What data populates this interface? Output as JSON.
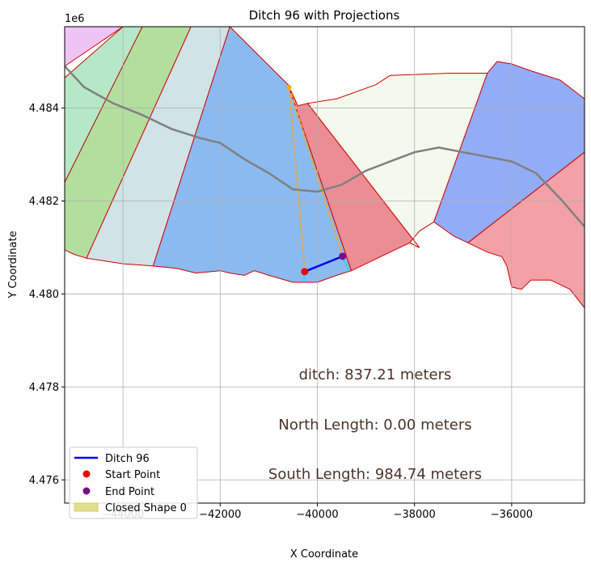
{
  "chart_data": {
    "type": "map-plot",
    "title": "Ditch 96 with Projections",
    "xlabel": "X Coordinate",
    "ylabel": "Y Coordinate",
    "offset_label": "1e6",
    "xlim": [
      -45200,
      -34500
    ],
    "ylim": [
      4475500,
      4485750
    ],
    "grid": true,
    "x_ticks": [
      {
        "value": -44000,
        "label": "−44000"
      },
      {
        "value": -42000,
        "label": "−42000"
      },
      {
        "value": -40000,
        "label": "−40000"
      },
      {
        "value": -38000,
        "label": "−38000"
      },
      {
        "value": -36000,
        "label": "−36000"
      }
    ],
    "y_ticks": [
      {
        "value": 4476000,
        "label": "4.476"
      },
      {
        "value": 4478000,
        "label": "4.478"
      },
      {
        "value": 4480000,
        "label": "4.480"
      },
      {
        "value": 4482000,
        "label": "4.482"
      },
      {
        "value": 4484000,
        "label": "4.484"
      }
    ],
    "polygons": [
      {
        "name": "strip-pink",
        "fill": "#eec4f5",
        "stroke": "#d00000",
        "points": [
          [
            -45200,
            4485750
          ],
          [
            -44000,
            4485750
          ],
          [
            -45200,
            4484900
          ]
        ]
      },
      {
        "name": "strip-mint",
        "fill": "#b5e8c7",
        "stroke": "#d00000",
        "points": [
          [
            -45200,
            4484650
          ],
          [
            -44000,
            4485750
          ],
          [
            -43600,
            4485750
          ],
          [
            -45200,
            4482400
          ]
        ]
      },
      {
        "name": "strip-green",
        "fill": "#b3df9e",
        "stroke": "#d00000",
        "points": [
          [
            -45200,
            4482400
          ],
          [
            -43600,
            4485750
          ],
          [
            -42600,
            4485750
          ],
          [
            -44750,
            4480770
          ],
          [
            -45000,
            4480850
          ],
          [
            -45200,
            4480950
          ]
        ]
      },
      {
        "name": "strip-bluegray",
        "fill": "#d0e3e7",
        "stroke": "#d00000",
        "points": [
          [
            -44750,
            4480770
          ],
          [
            -42600,
            4485750
          ],
          [
            -41800,
            4485750
          ],
          [
            -43380,
            4480600
          ],
          [
            -44000,
            4480650
          ]
        ]
      },
      {
        "name": "strip-blue",
        "fill": "#8bbaf0",
        "stroke": "#d00000",
        "points": [
          [
            -43380,
            4480600
          ],
          [
            -41800,
            4485750
          ],
          [
            -40600,
            4484500
          ],
          [
            -39300,
            4480500
          ],
          [
            -39600,
            4480400
          ],
          [
            -40000,
            4480250
          ],
          [
            -40500,
            4480250
          ],
          [
            -41000,
            4480400
          ],
          [
            -41300,
            4480500
          ],
          [
            -41500,
            4480400
          ],
          [
            -41800,
            4480450
          ],
          [
            -42000,
            4480500
          ],
          [
            -42500,
            4480450
          ],
          [
            -42900,
            4480550
          ]
        ]
      },
      {
        "name": "strip-red-mid",
        "fill": "#ea8d95",
        "stroke": "#d00000",
        "points": [
          [
            -40600,
            4484500
          ],
          [
            -40400,
            4484050
          ],
          [
            -40200,
            4484100
          ],
          [
            -37900,
            4481000
          ],
          [
            -38100,
            4481100
          ],
          [
            -38500,
            4480900
          ],
          [
            -39000,
            4480650
          ],
          [
            -39300,
            4480500
          ]
        ]
      },
      {
        "name": "strip-cream",
        "fill": "#f3f9ec",
        "stroke": "#d00000",
        "points": [
          [
            -40200,
            4484100
          ],
          [
            -39600,
            4484200
          ],
          [
            -38800,
            4484500
          ],
          [
            -38500,
            4484700
          ],
          [
            -37300,
            4484750
          ],
          [
            -36500,
            4484750
          ],
          [
            -37600,
            4481550
          ],
          [
            -37900,
            4481350
          ],
          [
            -38100,
            4481100
          ],
          [
            -37900,
            4481000
          ]
        ]
      },
      {
        "name": "strip-royal",
        "fill": "#93acf7",
        "stroke": "#d00000",
        "points": [
          [
            -37600,
            4481550
          ],
          [
            -36500,
            4484750
          ],
          [
            -36300,
            4485000
          ],
          [
            -36000,
            4484950
          ],
          [
            -35600,
            4484800
          ],
          [
            -35000,
            4484600
          ],
          [
            -34500,
            4484200
          ],
          [
            -34500,
            4483050
          ],
          [
            -36900,
            4481100
          ],
          [
            -37200,
            4481250
          ]
        ]
      },
      {
        "name": "strip-red-right",
        "fill": "#f3a1a7",
        "stroke": "#d00000",
        "points": [
          [
            -36900,
            4481100
          ],
          [
            -34500,
            4483050
          ],
          [
            -34500,
            4479700
          ],
          [
            -34800,
            4480100
          ],
          [
            -35200,
            4480300
          ],
          [
            -35600,
            4480300
          ],
          [
            -35800,
            4480100
          ],
          [
            -36000,
            4480150
          ],
          [
            -36100,
            4480600
          ],
          [
            -36200,
            4480800
          ],
          [
            -36500,
            4480900
          ]
        ]
      }
    ],
    "centerline": {
      "name": "gray-path",
      "color": "#808080",
      "points": [
        [
          -45200,
          4484900
        ],
        [
          -44800,
          4484450
        ],
        [
          -44200,
          4484100
        ],
        [
          -43600,
          4483850
        ],
        [
          -43000,
          4483550
        ],
        [
          -42400,
          4483350
        ],
        [
          -42000,
          4483250
        ],
        [
          -41500,
          4482900
        ],
        [
          -41000,
          4482600
        ],
        [
          -40500,
          4482250
        ],
        [
          -40000,
          4482200
        ],
        [
          -39500,
          4482350
        ],
        [
          -39000,
          4482650
        ],
        [
          -38500,
          4482850
        ],
        [
          -38000,
          4483050
        ],
        [
          -37500,
          4483150
        ],
        [
          -37000,
          4483050
        ],
        [
          -36500,
          4482950
        ],
        [
          -36000,
          4482850
        ],
        [
          -35500,
          4482600
        ],
        [
          -35000,
          4482050
        ],
        [
          -34500,
          4481450
        ]
      ]
    },
    "projection_lines": [
      {
        "name": "projection-line-left",
        "color": "#f5a623",
        "points": [
          [
            -40580,
            4484450
          ],
          [
            -40260,
            4480480
          ]
        ]
      },
      {
        "name": "projection-line-right",
        "color": "#f5a623",
        "points": [
          [
            -40580,
            4484450
          ],
          [
            -39480,
            4480810
          ]
        ]
      }
    ],
    "cyan_ticks": [
      {
        "name": "cyan-tick-left",
        "points": [
          [
            -40260,
            4480480
          ],
          [
            -40280,
            4480250
          ]
        ]
      },
      {
        "name": "cyan-tick-right",
        "points": [
          [
            -39480,
            4480810
          ],
          [
            -39350,
            4480500
          ]
        ]
      }
    ],
    "ditch": {
      "name": "Ditch 96",
      "color": "#0000ee",
      "points": [
        [
          -40260,
          4480480
        ],
        [
          -39480,
          4480810
        ]
      ]
    },
    "start_point": {
      "name": "Start Point",
      "color": "#ee0000",
      "x": -40260,
      "y": 4480480
    },
    "end_point": {
      "name": "End Point",
      "color": "#7a0e86",
      "x": -39480,
      "y": 4480810
    },
    "projection_start": {
      "color": "#f5a623",
      "x": -40580,
      "y": 4484450
    },
    "annotations": [
      "ditch: 837.21 meters",
      "North Length: 0.00 meters",
      "South Length: 984.74 meters"
    ],
    "legend": {
      "position": "lower left",
      "entries": [
        {
          "label": "Ditch 96",
          "kind": "line",
          "color": "#0000ee"
        },
        {
          "label": "Start Point",
          "kind": "dot",
          "color": "#ee0000"
        },
        {
          "label": "End Point",
          "kind": "dot",
          "color": "#7a0e86"
        },
        {
          "label": "Closed Shape 0",
          "kind": "patch",
          "color": "#e3de8a"
        }
      ]
    }
  }
}
